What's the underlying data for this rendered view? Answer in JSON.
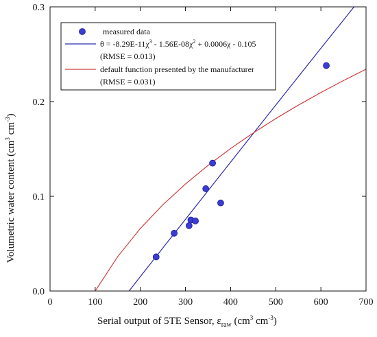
{
  "chart_data": {
    "type": "scatter",
    "xlabel": {
      "main": "Serial output of 5TE Sensor, ε",
      "sub": "raw",
      "unit": " (cm",
      "unit_sup": "3",
      "unit_mid": " cm",
      "unit_sup2": "-3",
      "unit_end": ")"
    },
    "ylabel": {
      "main": "Volumetric water content (cm",
      "sup": "3",
      "mid": " cm",
      "sup2": "-3",
      "end": ")"
    },
    "xlim": [
      0,
      700
    ],
    "ylim": [
      0.0,
      0.3
    ],
    "x_ticks": [
      "0",
      "100",
      "200",
      "300",
      "400",
      "500",
      "600",
      "700"
    ],
    "y_ticks": [
      "0.0",
      "0.1",
      "0.2",
      "0.3"
    ],
    "x_tick_values": [
      0,
      100,
      200,
      300,
      400,
      500,
      600,
      700
    ],
    "y_tick_values": [
      0.0,
      0.1,
      0.2,
      0.3
    ],
    "grid": false,
    "legend_position": "top-left",
    "series": [
      {
        "name": "measured data",
        "kind": "points",
        "color": "#3b3bd6",
        "x": [
          235,
          275,
          308,
          312,
          322,
          345,
          360,
          378,
          612
        ],
        "y": [
          0.036,
          0.061,
          0.069,
          0.075,
          0.074,
          0.108,
          0.135,
          0.093,
          0.238
        ]
      },
      {
        "name": "θ = -8.29E-11χ³ - 1.56E-08χ² + 0.0006χ - 0.105",
        "name_parts": [
          "θ = -8.29E-11χ",
          "3",
          "  - 1.56E-08χ",
          "2",
          " + 0.0006χ - 0.105"
        ],
        "note": "(RMSE = 0.013)",
        "kind": "line",
        "color": "#2b2bb0",
        "x": [
          175,
          200,
          250,
          300,
          350,
          400,
          450,
          500,
          550,
          600,
          650,
          700
        ],
        "y": [
          0.0,
          0.0152,
          0.0454,
          0.0757,
          0.1059,
          0.1361,
          0.1662,
          0.1963,
          0.2263,
          0.2562,
          0.2861,
          0.3159
        ]
      },
      {
        "name": "default function presented by the manufacturer",
        "note": "(RMSE = 0.031)",
        "kind": "line",
        "color": "#d04040",
        "x": [
          100,
          150,
          200,
          250,
          300,
          350,
          400,
          450,
          500,
          550,
          600,
          650,
          700
        ],
        "y": [
          0.0,
          0.0364,
          0.066,
          0.0911,
          0.113,
          0.1326,
          0.1504,
          0.1668,
          0.182,
          0.1962,
          0.2096,
          0.2222,
          0.2342
        ]
      }
    ]
  }
}
